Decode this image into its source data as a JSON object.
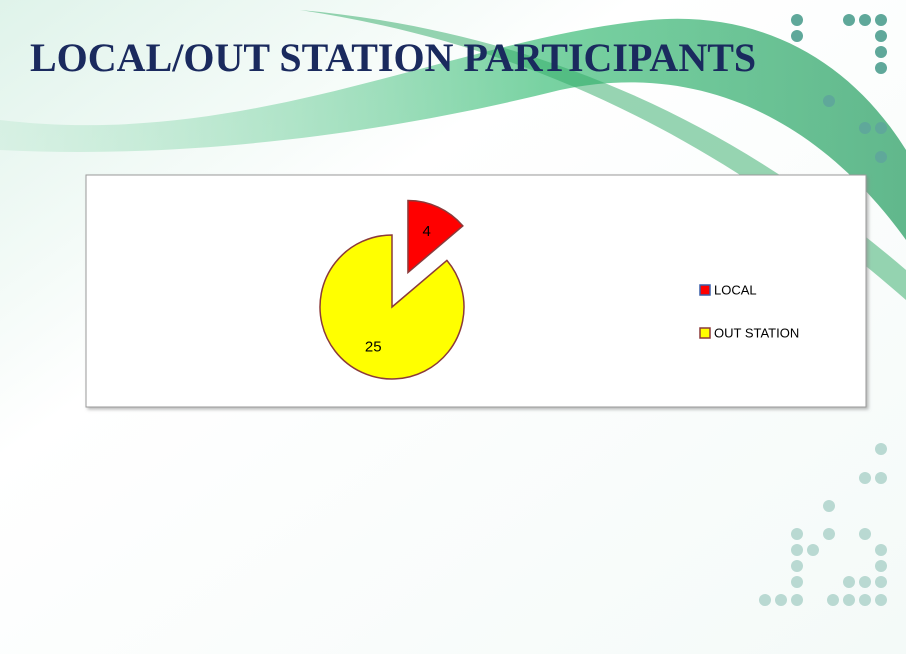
{
  "chart_data": {
    "type": "pie",
    "title": "LOCAL/OUT STATION PARTICIPANTS",
    "categories": [
      "LOCAL",
      "OUT STATION"
    ],
    "values": [
      4,
      25
    ],
    "colors": [
      "#ff0000",
      "#ffff00"
    ],
    "exploded": [
      true,
      false
    ],
    "legend": "right"
  }
}
